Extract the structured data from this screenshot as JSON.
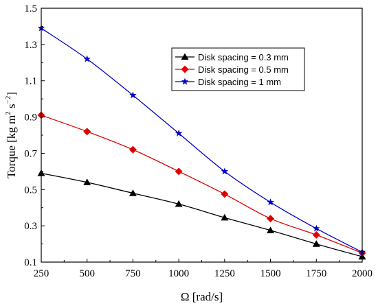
{
  "chart_data": {
    "type": "line",
    "title": "",
    "xlabel": "Ω [rad/s]",
    "ylabel_parts": [
      "Torque [kg m",
      "2",
      " s",
      "−2",
      "]"
    ],
    "xlim": [
      250,
      2000
    ],
    "ylim": [
      0.1,
      1.5
    ],
    "x_ticks": [
      250,
      500,
      750,
      1000,
      1250,
      1500,
      1750,
      2000
    ],
    "y_ticks": [
      0.1,
      0.3,
      0.5,
      0.7,
      0.9,
      1.1,
      1.3,
      1.5
    ],
    "x_tick_labels": [
      "250",
      "500",
      "750",
      "1000",
      "1250",
      "1500",
      "1750",
      "2000"
    ],
    "y_tick_labels": [
      "0.1",
      "0.3",
      "0.5",
      "0.7",
      "0.9",
      "1.1",
      "1.3",
      "1.5"
    ],
    "legend_position": "top-right",
    "grid": false,
    "x": [
      250,
      500,
      750,
      1000,
      1250,
      1500,
      1750,
      2000
    ],
    "series": [
      {
        "name": "Disk spacing = 0.3 mm",
        "marker": "triangle",
        "color": "#000000",
        "values": [
          0.59,
          0.54,
          0.48,
          0.42,
          0.345,
          0.275,
          0.2,
          0.13
        ]
      },
      {
        "name": "Disk spacing = 0.5 mm",
        "marker": "diamond",
        "color": "#e00000",
        "values": [
          0.91,
          0.82,
          0.72,
          0.6,
          0.475,
          0.34,
          0.25,
          0.15
        ]
      },
      {
        "name": "Disk spacing = 1 mm",
        "marker": "star",
        "color": "#0000c8",
        "values": [
          1.39,
          1.22,
          1.02,
          0.81,
          0.6,
          0.43,
          0.285,
          0.155
        ]
      }
    ]
  }
}
